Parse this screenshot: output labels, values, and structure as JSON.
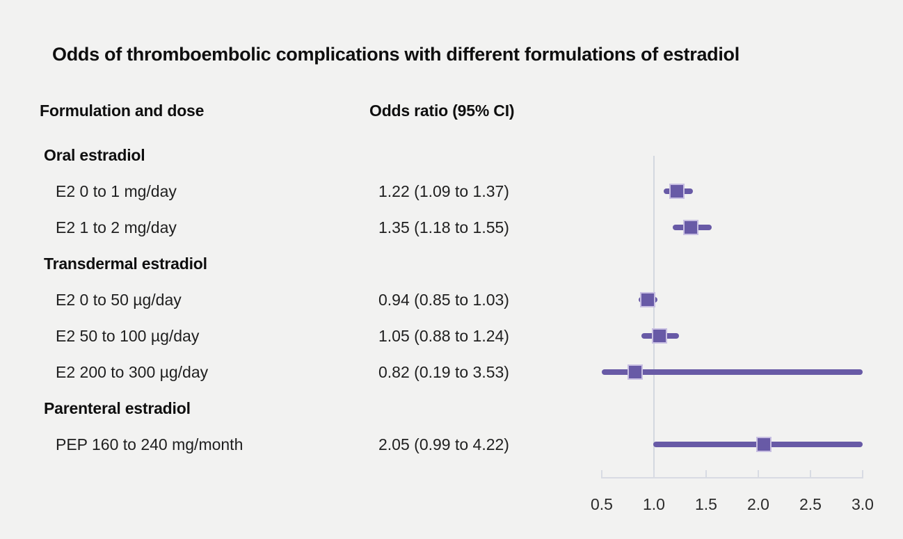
{
  "title": "Odds of thromboembolic complications with different formulations of estradiol",
  "columns": {
    "left_header": "Formulation and dose",
    "right_header": "Odds ratio (95% CI)"
  },
  "colors": {
    "background": "#f2f2f1",
    "text": "#1f1f1f",
    "purple": "#685aa6",
    "marker_border": "#c8bfe2",
    "axis_line": "#d8dbe3",
    "reference_line": "#d3d8e0"
  },
  "chart_data": {
    "type": "scatter",
    "subtype": "forest-plot",
    "title": "Odds of thromboembolic complications with different formulations of estradiol",
    "xlabel": "",
    "ylabel": "",
    "legend": null,
    "grid": false,
    "axis": {
      "min": 0.5,
      "max": 3.0,
      "reference_value": 1.0,
      "tick_values": [
        0.5,
        1.0,
        1.5,
        2.0,
        2.5,
        3.0
      ],
      "tick_labels": [
        "0.5",
        "1.0",
        "1.5",
        "2.0",
        "2.5",
        "3.0"
      ]
    },
    "rows": [
      {
        "kind": "group",
        "label": "Oral estradiol"
      },
      {
        "kind": "item",
        "label": "E2 0 to 1 mg/day",
        "or_text": "1.22 (1.09 to 1.37)",
        "estimate": 1.22,
        "ci_low": 1.09,
        "ci_high": 1.37
      },
      {
        "kind": "item",
        "label": "E2 1 to 2 mg/day",
        "or_text": "1.35 (1.18 to 1.55)",
        "estimate": 1.35,
        "ci_low": 1.18,
        "ci_high": 1.55
      },
      {
        "kind": "group",
        "label": "Transdermal estradiol"
      },
      {
        "kind": "item",
        "label": "E2 0 to 50 µg/day",
        "or_text": "0.94 (0.85 to 1.03)",
        "estimate": 0.94,
        "ci_low": 0.85,
        "ci_high": 1.03
      },
      {
        "kind": "item",
        "label": "E2 50 to 100 µg/day",
        "or_text": "1.05 (0.88 to 1.24)",
        "estimate": 1.05,
        "ci_low": 0.88,
        "ci_high": 1.24
      },
      {
        "kind": "item",
        "label": "E2 200 to 300 µg/day",
        "or_text": "0.82 (0.19 to 3.53)",
        "estimate": 0.82,
        "ci_low": 0.19,
        "ci_high": 3.53
      },
      {
        "kind": "group",
        "label": "Parenteral estradiol"
      },
      {
        "kind": "item",
        "label": "PEP 160 to 240 mg/month",
        "or_text": "2.05 (0.99 to 4.22)",
        "estimate": 2.05,
        "ci_low": 0.99,
        "ci_high": 4.22
      }
    ]
  }
}
